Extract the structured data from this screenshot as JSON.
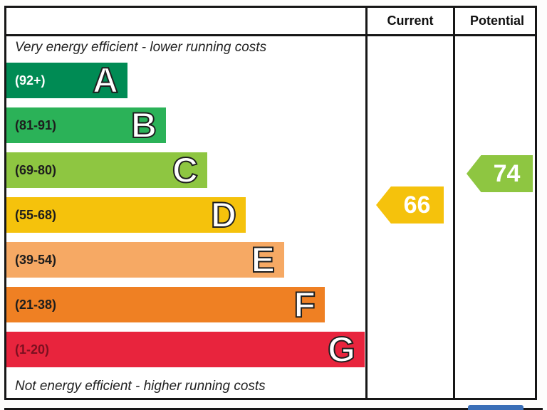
{
  "header": {
    "current": "Current",
    "potential": "Potential"
  },
  "chart_data": {
    "type": "bar",
    "kind": "energy-efficiency-rating-scale",
    "annotations": {
      "top": "Very energy efficient - lower running costs",
      "bottom": "Not energy efficient - higher running costs"
    },
    "columns": [
      "Current",
      "Potential"
    ],
    "bands": [
      {
        "letter": "A",
        "range": "(92+)",
        "min": 92,
        "max": 100,
        "color": "#008b54"
      },
      {
        "letter": "B",
        "range": "(81-91)",
        "min": 81,
        "max": 91,
        "color": "#2bb258"
      },
      {
        "letter": "C",
        "range": "(69-80)",
        "min": 69,
        "max": 80,
        "color": "#8ec641"
      },
      {
        "letter": "D",
        "range": "(55-68)",
        "min": 55,
        "max": 68,
        "color": "#f5c20c"
      },
      {
        "letter": "E",
        "range": "(39-54)",
        "min": 39,
        "max": 54,
        "color": "#f6a964"
      },
      {
        "letter": "F",
        "range": "(21-38)",
        "min": 21,
        "max": 38,
        "color": "#ef8023"
      },
      {
        "letter": "G",
        "range": "(1-20)",
        "min": 1,
        "max": 20,
        "color": "#e8243d"
      }
    ],
    "current": {
      "value": 66,
      "band": "D",
      "color": "#f5c20c"
    },
    "potential": {
      "value": 74,
      "band": "C",
      "color": "#8ec641"
    },
    "colors": {
      "border": "#161616",
      "eu_flag_blue": "#3a6fb7"
    }
  }
}
